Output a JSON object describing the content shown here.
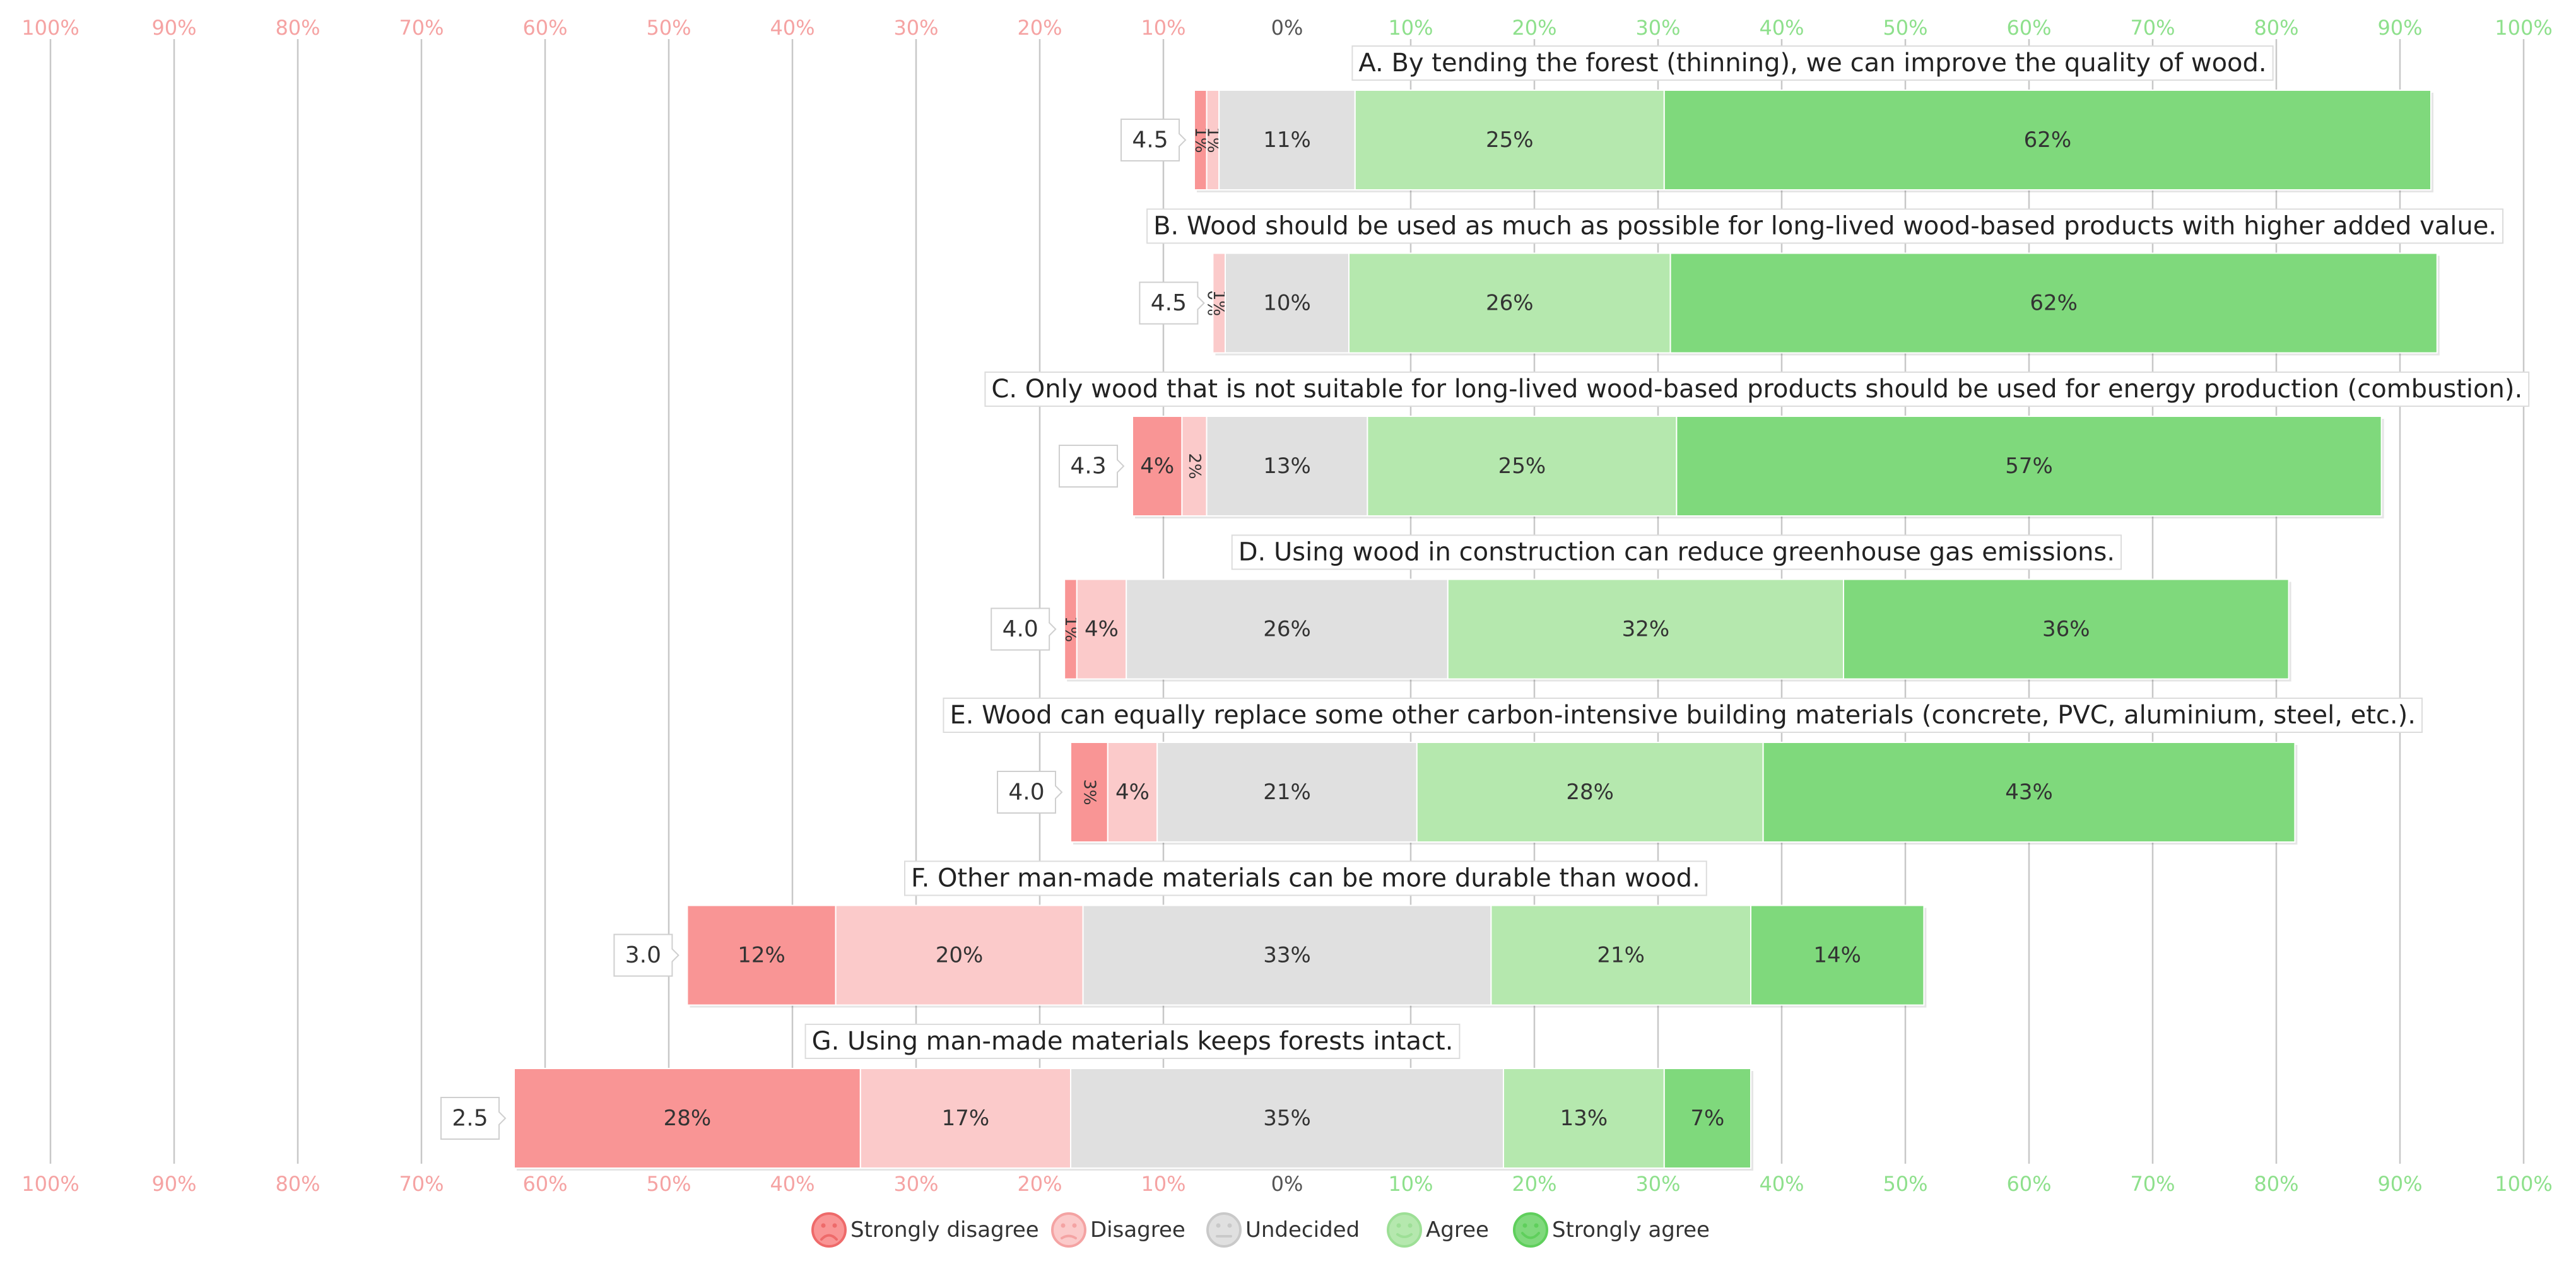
{
  "chart_data": {
    "type": "bar",
    "subtype": "diverging-stacked-likert",
    "axis": {
      "range": [
        -100,
        100
      ],
      "left_ticks": [
        "100%",
        "90%",
        "80%",
        "70%",
        "60%",
        "50%",
        "40%",
        "30%",
        "20%",
        "10%"
      ],
      "center_tick": "0%",
      "right_ticks": [
        "10%",
        "20%",
        "30%",
        "40%",
        "50%",
        "60%",
        "70%",
        "80%",
        "90%",
        "100%"
      ],
      "grid": true
    },
    "colors": {
      "strongly_disagree": "#f99595",
      "disagree": "#fbcaca",
      "undecided": "#e0e0e0",
      "agree": "#b5e8ae",
      "strongly_agree": "#7fd97c",
      "negative_tick": "#f5a3a3",
      "center_tick": "#555555",
      "positive_tick": "#8ee08c",
      "grid": "#c8c8c8"
    },
    "legend": {
      "placement": "bottom",
      "items": [
        {
          "key": "strongly_disagree",
          "label": "Strongly disagree",
          "icon": "very-sad-face-icon"
        },
        {
          "key": "disagree",
          "label": "Disagree",
          "icon": "sad-face-icon"
        },
        {
          "key": "undecided",
          "label": "Undecided",
          "icon": "neutral-face-icon"
        },
        {
          "key": "agree",
          "label": "Agree",
          "icon": "smile-face-icon"
        },
        {
          "key": "strongly_agree",
          "label": "Strongly agree",
          "icon": "big-smile-face-icon"
        }
      ]
    },
    "questions": [
      {
        "label": "A. By tending the forest (thinning), we can improve the quality of wood.",
        "score": "4.5",
        "values": [
          1,
          1,
          11,
          25,
          62
        ],
        "value_labels": [
          "1%",
          "1%",
          "11%",
          "25%",
          "62%"
        ]
      },
      {
        "label": "B. Wood should be used as much as possible for long-lived wood-based products with higher added value.",
        "score": "4.5",
        "values": [
          0,
          1,
          10,
          26,
          62
        ],
        "value_labels": [
          "0%",
          "1%",
          "10%",
          "26%",
          "62%"
        ]
      },
      {
        "label": "C. Only wood that is not suitable for long-lived wood-based products should be used for energy production (combustion).",
        "score": "4.3",
        "values": [
          4,
          2,
          13,
          25,
          57
        ],
        "value_labels": [
          "4%",
          "2%",
          "13%",
          "25%",
          "57%"
        ]
      },
      {
        "label": "D. Using wood in construction can reduce greenhouse gas emissions.",
        "score": "4.0",
        "values": [
          1,
          4,
          26,
          32,
          36
        ],
        "value_labels": [
          "1%",
          "4%",
          "26%",
          "32%",
          "36%"
        ]
      },
      {
        "label": "E. Wood can equally replace some other carbon-intensive building materials (concrete, PVC, aluminium, steel, etc.).",
        "score": "4.0",
        "values": [
          3,
          4,
          21,
          28,
          43
        ],
        "value_labels": [
          "3%",
          "4%",
          "21%",
          "28%",
          "43%"
        ]
      },
      {
        "label": "F. Other man-made materials can be more durable than wood.",
        "score": "3.0",
        "values": [
          12,
          20,
          33,
          21,
          14
        ],
        "value_labels": [
          "12%",
          "20%",
          "33%",
          "21%",
          "14%"
        ]
      },
      {
        "label": "G. Using man-made materials keeps forests intact.",
        "score": "2.5",
        "values": [
          28,
          17,
          35,
          13,
          7
        ],
        "value_labels": [
          "28%",
          "17%",
          "35%",
          "13%",
          "7%"
        ]
      }
    ]
  }
}
